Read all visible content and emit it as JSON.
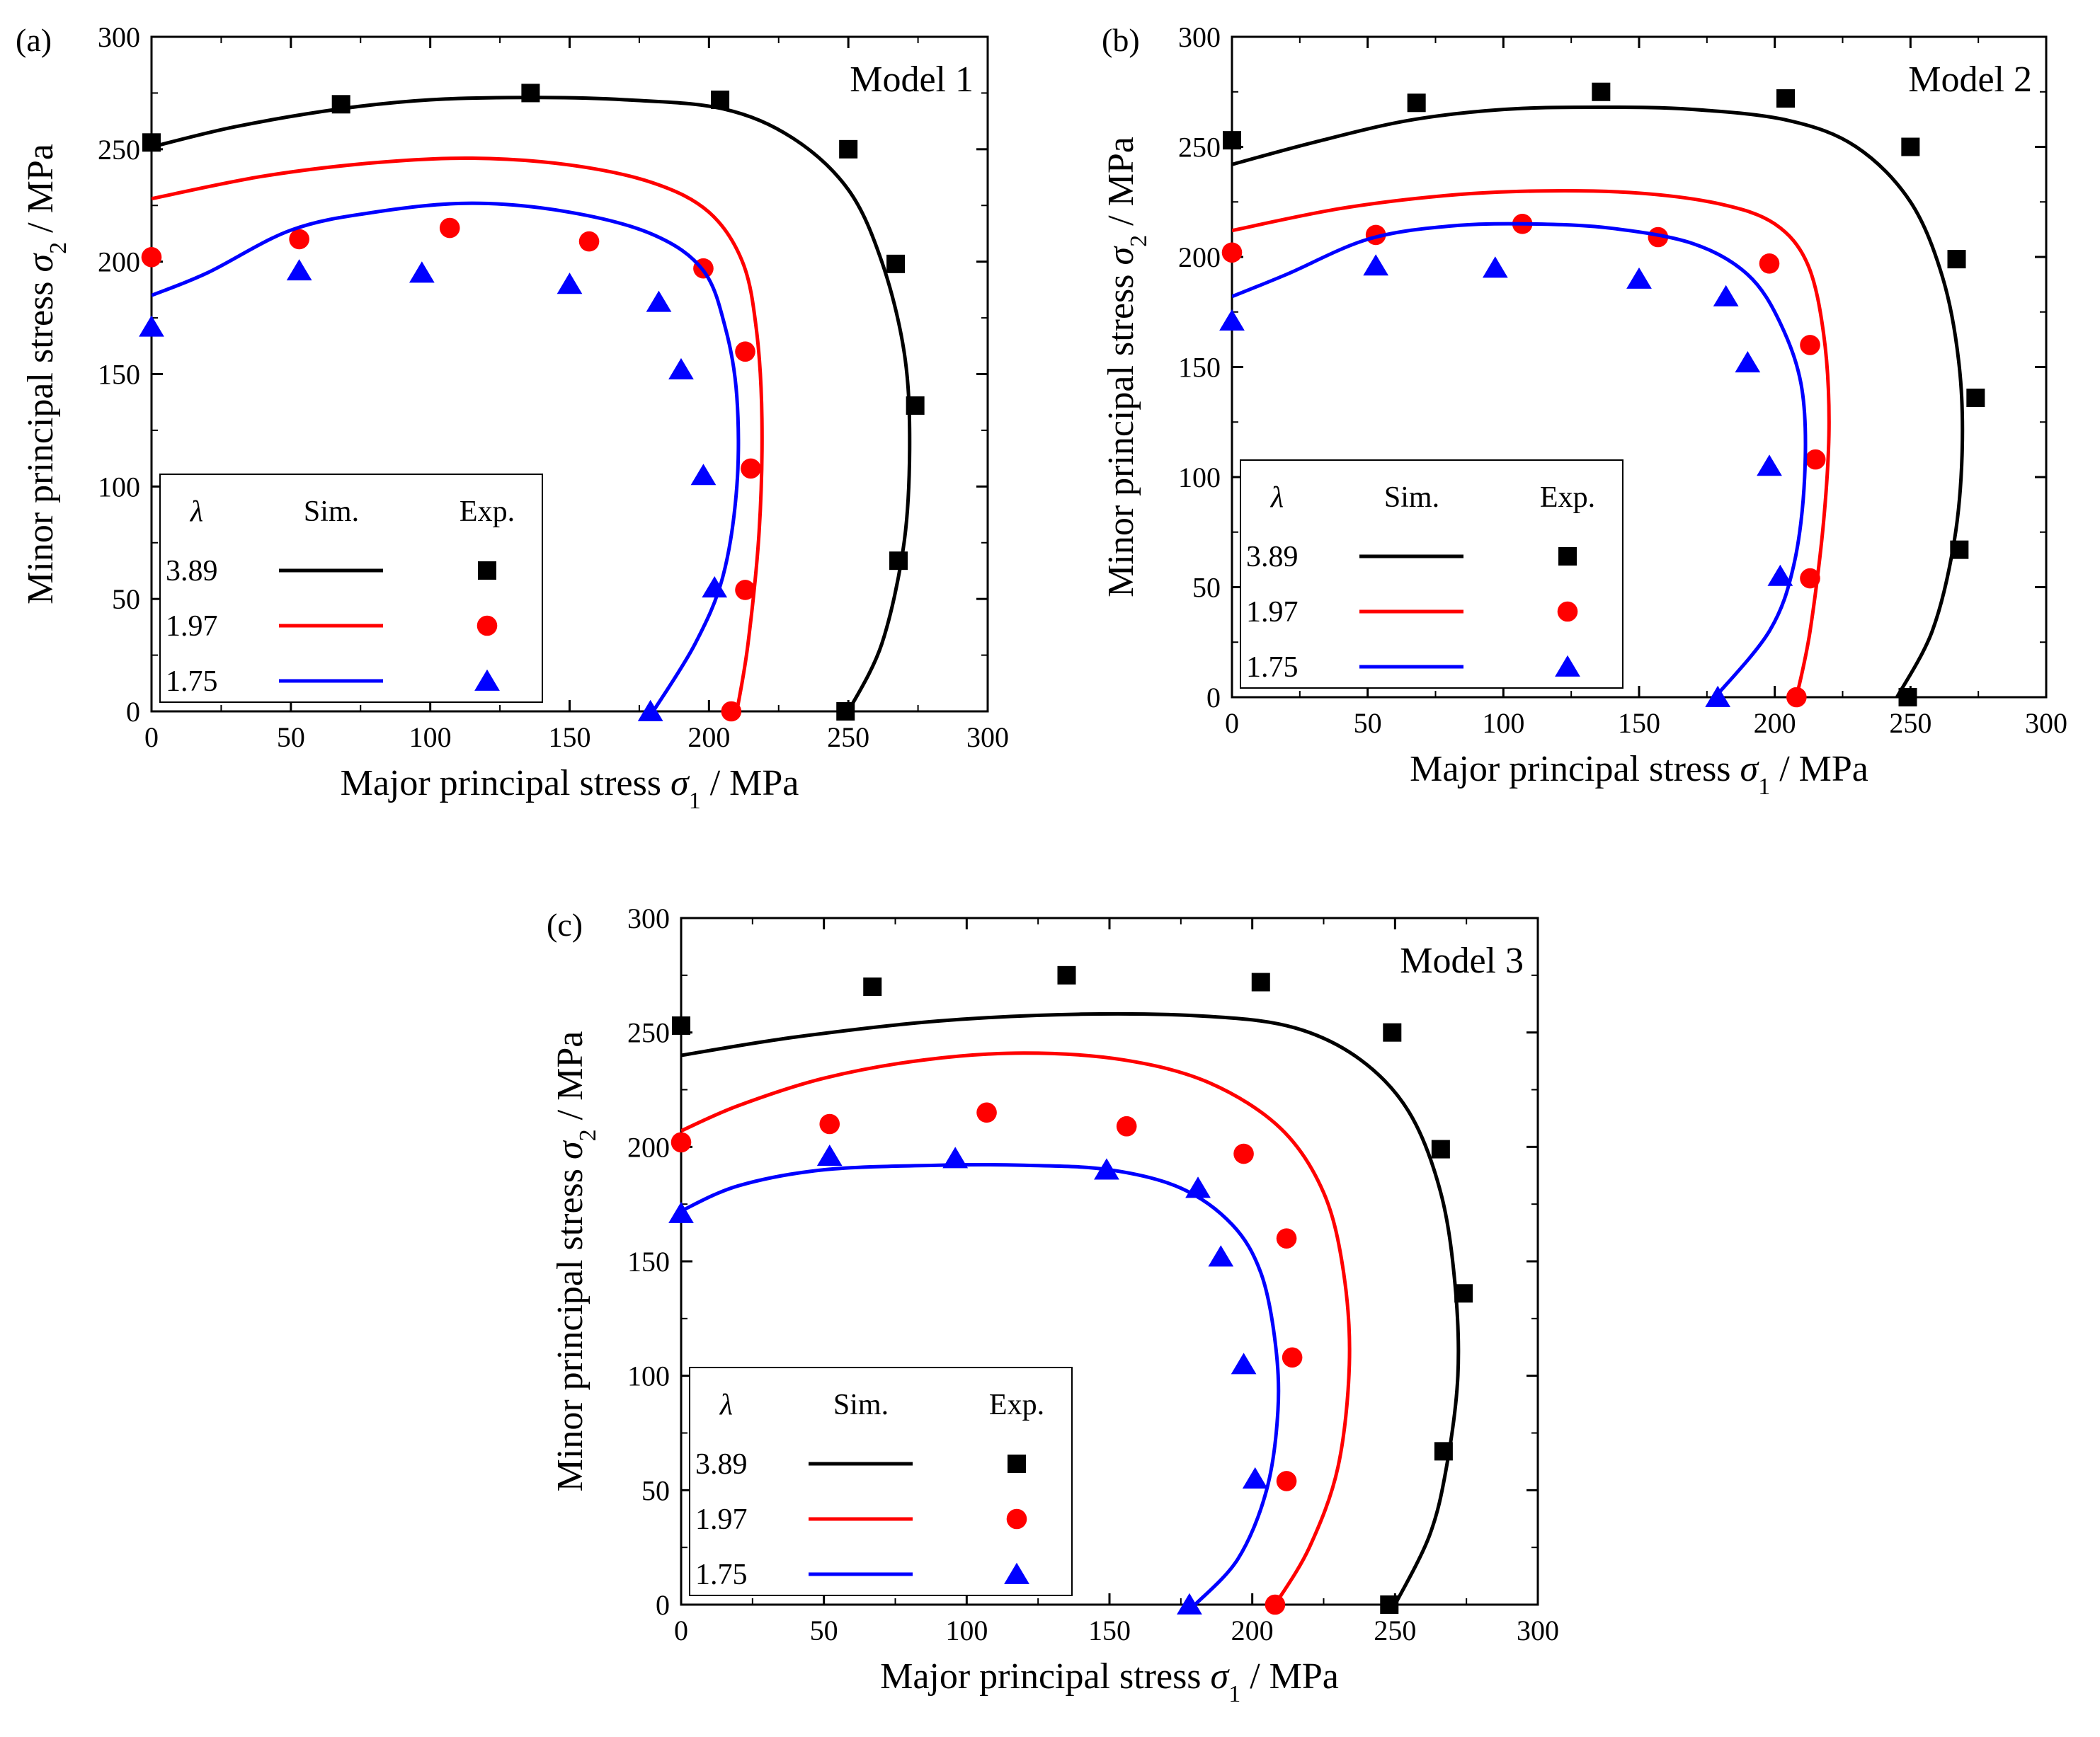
{
  "figure": {
    "panels": [
      "(a)",
      "(b)",
      "(c)"
    ]
  },
  "chart_data": [
    {
      "type": "scatter",
      "panel_label": "(a)",
      "title": "Model 1",
      "xlabel_prefix": "Major principal stress ",
      "xlabel_symbol": "σ",
      "xlabel_sub": "1",
      "xlabel_suffix": " / MPa",
      "ylabel_prefix": "Minor principal stress ",
      "ylabel_symbol": "σ",
      "ylabel_sub": "2",
      "ylabel_suffix": " / MPa",
      "xlim": [
        0,
        300
      ],
      "ylim": [
        0,
        300
      ],
      "xticks": [
        "0",
        "50",
        "100",
        "150",
        "200",
        "250",
        "300"
      ],
      "yticks": [
        "0",
        "50",
        "100",
        "150",
        "200",
        "250",
        "300"
      ],
      "legend": {
        "header_lambda": "λ",
        "header_sim": "Sim.",
        "header_exp": "Exp.",
        "placement": "bottom-left"
      },
      "series": [
        {
          "lambda": "3.89",
          "color": "#000000",
          "marker": "square",
          "sim": {
            "x": [
              0,
              30,
              68,
              100,
              136,
              170,
              205,
              230,
              250,
              262,
              270,
              272,
              270,
              262,
              250
            ],
            "y": [
              251,
              260,
              268,
              272,
              273,
              272,
              268,
              255,
              232,
              200,
              160,
              120,
              75,
              30,
              0
            ]
          },
          "exp": {
            "x": [
              0,
              68,
              136,
              204,
              250,
              267,
              274,
              268,
              249
            ],
            "y": [
              253,
              270,
              275,
              272,
              250,
              199,
              136,
              67,
              0
            ]
          }
        },
        {
          "lambda": "1.97",
          "color": "#ff0000",
          "marker": "circle",
          "sim": {
            "x": [
              0,
              40,
              80,
              115,
              150,
              180,
              200,
              212,
              217,
              219,
              218,
              214,
              210
            ],
            "y": [
              228,
              238,
              244,
              246,
              243,
              235,
              222,
              200,
              170,
              130,
              80,
              30,
              0
            ]
          },
          "exp": {
            "x": [
              0,
              53,
              107,
              157,
              198,
              213,
              215,
              213,
              208
            ],
            "y": [
              202,
              210,
              215,
              209,
              197,
              160,
              108,
              54,
              0
            ]
          }
        },
        {
          "lambda": "1.75",
          "color": "#0000ff",
          "marker": "triangle",
          "sim": {
            "x": [
              0,
              20,
              50,
              80,
              115,
              150,
              180,
              198,
              206,
              210,
              210,
              205,
              195,
              180
            ],
            "y": [
              185,
              195,
              214,
              222,
              226,
              222,
              212,
              196,
              170,
              140,
              100,
              60,
              30,
              0
            ]
          },
          "exp": {
            "x": [
              0,
              53,
              97,
              150,
              182,
              190,
              198,
              202,
              179
            ],
            "y": [
              171,
              196,
              195,
              190,
              182,
              152,
              105,
              55,
              0
            ]
          }
        }
      ]
    },
    {
      "type": "scatter",
      "panel_label": "(b)",
      "title": "Model 2",
      "xlabel_prefix": "Major principal stress ",
      "xlabel_symbol": "σ",
      "xlabel_sub": "1",
      "xlabel_suffix": " / MPa",
      "ylabel_prefix": "Minor principal stress ",
      "ylabel_symbol": "σ",
      "ylabel_sub": "2",
      "ylabel_suffix": " / MPa",
      "xlim": [
        0,
        300
      ],
      "ylim": [
        0,
        300
      ],
      "xticks": [
        "0",
        "50",
        "100",
        "150",
        "200",
        "250",
        "300"
      ],
      "yticks": [
        "0",
        "50",
        "100",
        "150",
        "200",
        "250",
        "300"
      ],
      "legend": {
        "header_lambda": "λ",
        "header_sim": "Sim.",
        "header_exp": "Exp.",
        "placement": "bottom-left"
      },
      "series": [
        {
          "lambda": "3.89",
          "color": "#000000",
          "marker": "square",
          "sim": {
            "x": [
              0,
              30,
              65,
              100,
              136,
              170,
              205,
              230,
              250,
              262,
              268,
              269,
              266,
              258,
              245
            ],
            "y": [
              242,
              252,
              262,
              267,
              268,
              267,
              262,
              250,
              225,
              190,
              150,
              110,
              70,
              30,
              0
            ]
          },
          "exp": {
            "x": [
              0,
              68,
              136,
              204,
              250,
              267,
              274,
              268,
              249
            ],
            "y": [
              253,
              270,
              275,
              272,
              250,
              199,
              136,
              67,
              0
            ]
          }
        },
        {
          "lambda": "1.97",
          "color": "#ff0000",
          "marker": "circle",
          "sim": {
            "x": [
              0,
              40,
              80,
              115,
              150,
              180,
              200,
              212,
              218,
              220,
              218,
              213,
              208
            ],
            "y": [
              212,
              222,
              228,
              230,
              229,
              224,
              215,
              197,
              165,
              125,
              80,
              30,
              0
            ]
          },
          "exp": {
            "x": [
              0,
              53,
              107,
              157,
              198,
              213,
              215,
              213,
              208
            ],
            "y": [
              202,
              210,
              215,
              209,
              197,
              160,
              108,
              54,
              0
            ]
          }
        },
        {
          "lambda": "1.75",
          "color": "#0000ff",
          "marker": "triangle",
          "sim": {
            "x": [
              0,
              20,
              50,
              80,
              110,
              140,
              170,
              190,
              202,
              210,
              211,
              207,
              198,
              178
            ],
            "y": [
              182,
              192,
              208,
              214,
              215,
              213,
              206,
              192,
              170,
              140,
              100,
              60,
              30,
              0
            ]
          },
          "exp": {
            "x": [
              0,
              53,
              97,
              150,
              182,
              190,
              198,
              202,
              179
            ],
            "y": [
              171,
              196,
              195,
              190,
              182,
              152,
              105,
              55,
              0
            ]
          }
        }
      ]
    },
    {
      "type": "scatter",
      "panel_label": "(c)",
      "title": "Model 3",
      "xlabel_prefix": "Major principal stress ",
      "xlabel_symbol": "σ",
      "xlabel_sub": "1",
      "xlabel_suffix": " / MPa",
      "ylabel_prefix": "Minor principal stress ",
      "ylabel_symbol": "σ",
      "ylabel_sub": "2",
      "ylabel_suffix": " / MPa",
      "xlim": [
        0,
        300
      ],
      "ylim": [
        0,
        300
      ],
      "xticks": [
        "0",
        "50",
        "100",
        "150",
        "200",
        "250",
        "300"
      ],
      "yticks": [
        "0",
        "50",
        "100",
        "150",
        "200",
        "250",
        "300"
      ],
      "legend": {
        "header_lambda": "λ",
        "header_sim": "Sim.",
        "header_exp": "Exp.",
        "placement": "bottom-left"
      },
      "series": [
        {
          "lambda": "3.89",
          "color": "#000000",
          "marker": "square",
          "sim": {
            "x": [
              0,
              40,
              90,
              140,
              185,
              215,
              238,
              255,
              266,
              271,
              272,
              268,
              262,
              250
            ],
            "y": [
              240,
              248,
              255,
              258,
              257,
              252,
              238,
              215,
              180,
              140,
              100,
              60,
              30,
              0
            ]
          },
          "exp": {
            "x": [
              0,
              67,
              135,
              203,
              249,
              266,
              274,
              267,
              248
            ],
            "y": [
              253,
              270,
              275,
              272,
              250,
              199,
              136,
              67,
              0
            ]
          }
        },
        {
          "lambda": "1.97",
          "color": "#ff0000",
          "marker": "circle",
          "sim": {
            "x": [
              0,
              20,
              50,
              85,
              120,
              155,
              185,
              210,
              225,
              232,
              234,
              230,
              220,
              208
            ],
            "y": [
              207,
              218,
              230,
              238,
              241,
              238,
              228,
              208,
              180,
              145,
              105,
              60,
              25,
              0
            ]
          },
          "exp": {
            "x": [
              0,
              52,
              107,
              156,
              197,
              212,
              214,
              212,
              208
            ],
            "y": [
              202,
              210,
              215,
              209,
              197,
              160,
              108,
              54,
              0
            ]
          }
        },
        {
          "lambda": "1.75",
          "color": "#0000ff",
          "marker": "triangle",
          "sim": {
            "x": [
              0,
              20,
              50,
              90,
              120,
              150,
              175,
              193,
              203,
              208,
              209,
              205,
              195,
              180
            ],
            "y": [
              172,
              183,
              190,
              192,
              192,
              190,
              182,
              166,
              145,
              115,
              85,
              50,
              20,
              0
            ]
          },
          "exp": {
            "x": [
              0,
              52,
              96,
              149,
              181,
              189,
              197,
              201,
              178
            ],
            "y": [
              171,
              196,
              195,
              190,
              182,
              152,
              105,
              55,
              0
            ]
          }
        }
      ]
    }
  ]
}
